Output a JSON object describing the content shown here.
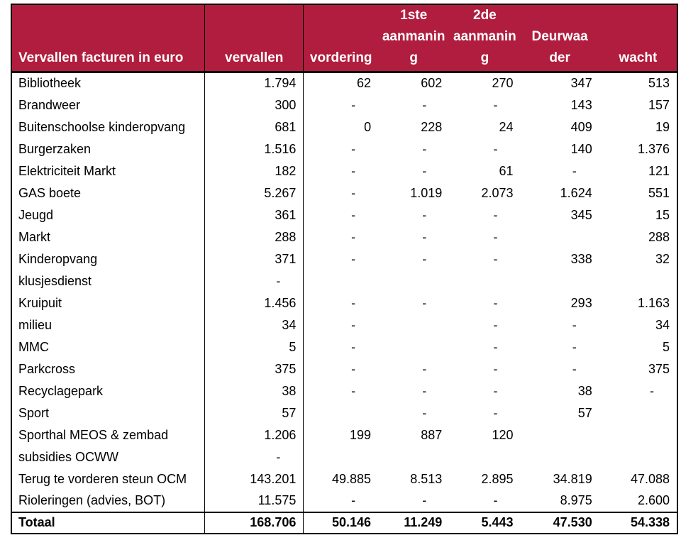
{
  "chart_data": {
    "type": "table",
    "title": "Vervallen facturen in euro",
    "columns": [
      "vervallen",
      "vordering",
      "1ste\naanmanin\ng",
      "2de\naanmanin\ng",
      "Deurwaa\nder",
      "wacht"
    ],
    "rows": [
      {
        "label": "Bibliotheek",
        "values": [
          "1.794",
          "62",
          "602",
          "270",
          "347",
          "513"
        ]
      },
      {
        "label": "Brandweer",
        "values": [
          "300",
          "-",
          "-",
          "-",
          "143",
          "157"
        ]
      },
      {
        "label": "Buitenschoolse kinderopvang",
        "values": [
          "681",
          "0",
          "228",
          "24",
          "409",
          "19"
        ]
      },
      {
        "label": "Burgerzaken",
        "values": [
          "1.516",
          "-",
          "-",
          "-",
          "140",
          "1.376"
        ]
      },
      {
        "label": "Elektriciteit Markt",
        "values": [
          "182",
          "-",
          "-",
          "61",
          "-",
          "121"
        ]
      },
      {
        "label": "GAS boete",
        "values": [
          "5.267",
          "-",
          "1.019",
          "2.073",
          "1.624",
          "551"
        ]
      },
      {
        "label": "Jeugd",
        "values": [
          "361",
          "-",
          "-",
          "-",
          "345",
          "15"
        ]
      },
      {
        "label": "Markt",
        "values": [
          "288",
          "-",
          "-",
          "-",
          "",
          "288"
        ]
      },
      {
        "label": "Kinderopvang",
        "values": [
          "371",
          "-",
          "-",
          "-",
          "338",
          "32"
        ]
      },
      {
        "label": "klusjesdienst",
        "values": [
          "-",
          "",
          "",
          "",
          "",
          ""
        ]
      },
      {
        "label": "Kruipuit",
        "values": [
          "1.456",
          "-",
          "-",
          "-",
          "293",
          "1.163"
        ]
      },
      {
        "label": "milieu",
        "values": [
          "34",
          "-",
          "",
          "-",
          "-",
          "34"
        ]
      },
      {
        "label": "MMC",
        "values": [
          "5",
          "-",
          "",
          "-",
          "-",
          "5"
        ]
      },
      {
        "label": "Parkcross",
        "values": [
          "375",
          "-",
          "-",
          "-",
          "-",
          "375"
        ]
      },
      {
        "label": "Recyclagepark",
        "values": [
          "38",
          "-",
          "-",
          "-",
          "38",
          "-"
        ]
      },
      {
        "label": "Sport",
        "values": [
          "57",
          "",
          "-",
          "-",
          "57",
          ""
        ]
      },
      {
        "label": "Sporthal MEOS & zembad",
        "values": [
          "1.206",
          "199",
          "887",
          "120",
          "",
          ""
        ]
      },
      {
        "label": "subsidies OCWW",
        "values": [
          "-",
          "",
          "",
          "",
          "",
          ""
        ]
      },
      {
        "label": "Terug te vorderen steun OCM",
        "values": [
          "143.201",
          "49.885",
          "8.513",
          "2.895",
          "34.819",
          "47.088"
        ]
      },
      {
        "label": "Rioleringen (advies, BOT)",
        "values": [
          "11.575",
          "-",
          "-",
          "-",
          "8.975",
          "2.600"
        ]
      }
    ],
    "total": {
      "label": "Totaal",
      "values": [
        "168.706",
        "50.146",
        "11.249",
        "5.443",
        "47.530",
        "54.338"
      ]
    },
    "layout": {
      "header_bg": "#B11D3E",
      "header_text_color": "#FFFFFF",
      "body_text_color": "#000000",
      "border_color": "#000000",
      "grid": "vertical separators after first two columns only"
    }
  }
}
